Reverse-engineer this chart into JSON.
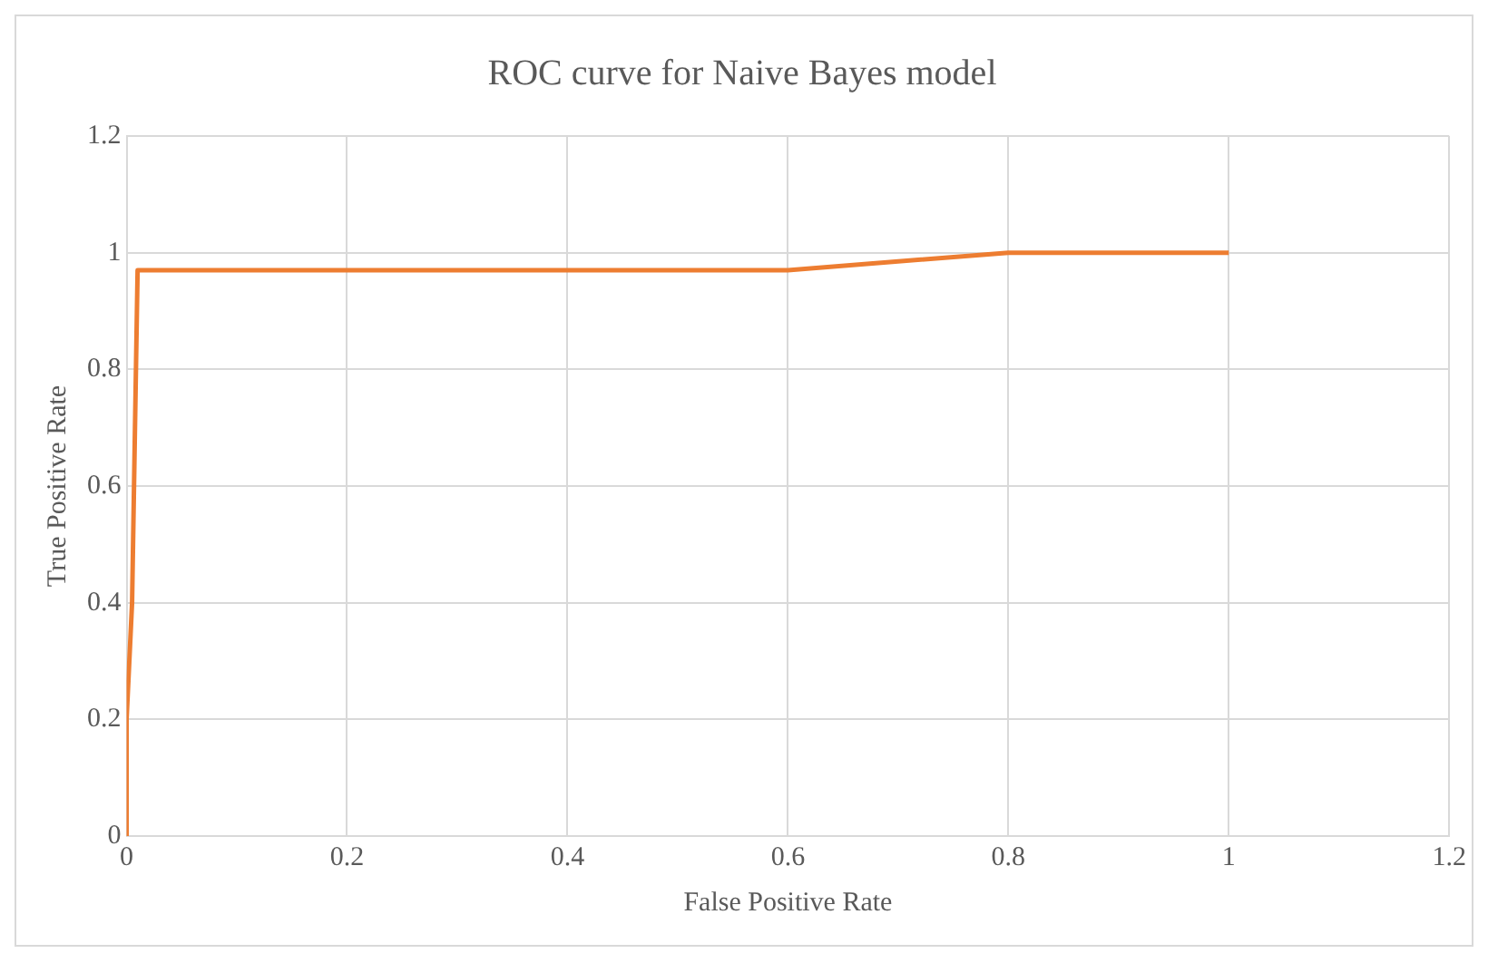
{
  "chart_data": {
    "type": "line",
    "title": "ROC curve for Naive Bayes model",
    "xlabel": "False Positive Rate",
    "ylabel": "True Positive Rate",
    "x": [
      0,
      0,
      0.005,
      0.01,
      0.6,
      0.8,
      1
    ],
    "series": [
      {
        "color": "#ed7d31",
        "values": [
          0,
          0.2,
          0.4,
          0.97,
          0.97,
          1,
          1
        ]
      }
    ],
    "xlim": [
      0,
      1.2
    ],
    "xticks": [
      0,
      0.2,
      0.4,
      0.6,
      0.8,
      1,
      1.2
    ],
    "ylim": [
      0,
      1.2
    ],
    "yticks": [
      0,
      0.2,
      0.4,
      0.6,
      0.8,
      1,
      1.2
    ],
    "grid": true,
    "legend": false,
    "marker": "none",
    "line_style": "solid"
  }
}
